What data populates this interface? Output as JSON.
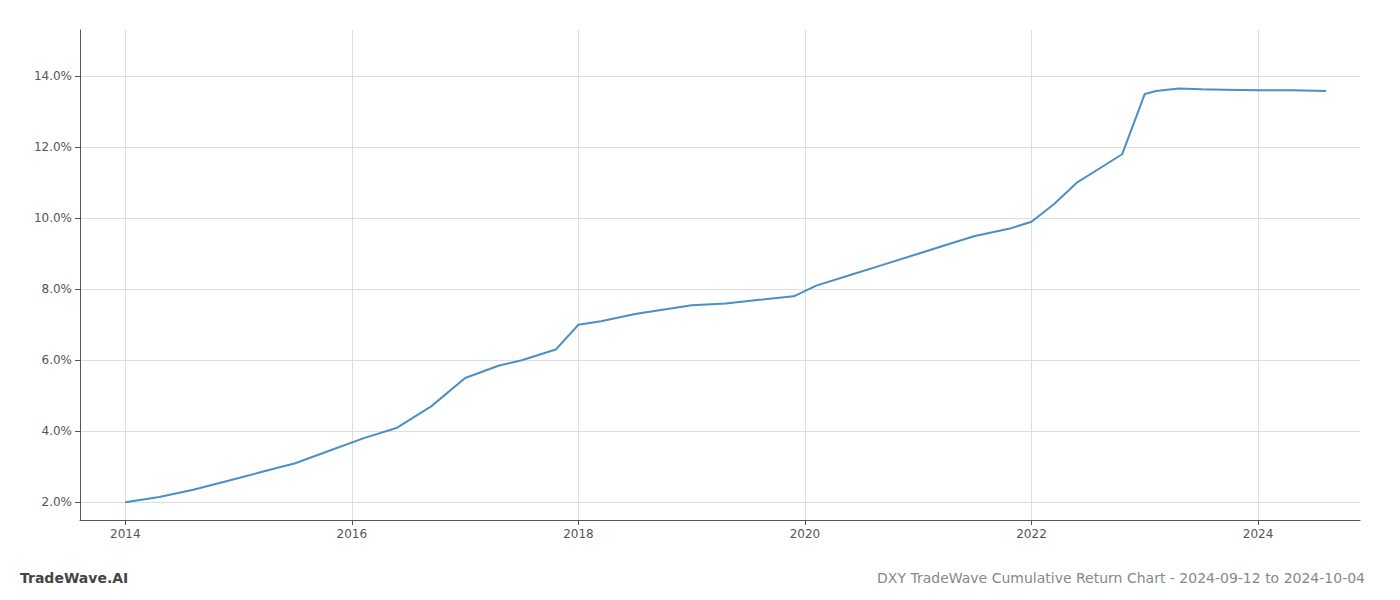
{
  "chart_data": {
    "type": "line",
    "title": "DXY TradeWave Cumulative Return Chart - 2024-09-12 to 2024-10-04",
    "annotations": [
      "TradeWave.AI"
    ],
    "color": "#4a90c4",
    "grid": true,
    "x": [
      2014.0,
      2014.3,
      2014.6,
      2014.9,
      2015.2,
      2015.5,
      2015.8,
      2016.1,
      2016.4,
      2016.7,
      2017.0,
      2017.3,
      2017.5,
      2017.8,
      2018.0,
      2018.2,
      2018.5,
      2018.8,
      2019.0,
      2019.3,
      2019.6,
      2019.9,
      2020.1,
      2020.4,
      2020.7,
      2021.0,
      2021.3,
      2021.5,
      2021.8,
      2022.0,
      2022.2,
      2022.4,
      2022.6,
      2022.8,
      2023.0,
      2023.1,
      2023.2,
      2023.3,
      2023.5,
      2023.7,
      2024.0,
      2024.3,
      2024.6
    ],
    "values": [
      2.0,
      2.15,
      2.35,
      2.6,
      2.85,
      3.1,
      3.45,
      3.8,
      4.1,
      4.7,
      5.5,
      5.85,
      6.0,
      6.3,
      7.0,
      7.1,
      7.3,
      7.45,
      7.55,
      7.6,
      7.7,
      7.8,
      8.1,
      8.4,
      8.7,
      9.0,
      9.3,
      9.5,
      9.7,
      9.9,
      10.4,
      11.0,
      11.4,
      11.8,
      13.5,
      13.58,
      13.62,
      13.65,
      13.63,
      13.62,
      13.6,
      13.6,
      13.58
    ],
    "xlim": [
      2013.6,
      2024.9
    ],
    "ylim": [
      1.5,
      15.3
    ],
    "xticks": [
      2014,
      2016,
      2018,
      2020,
      2022,
      2024
    ],
    "yticks": [
      {
        "value": 2.0,
        "label": "2.0%"
      },
      {
        "value": 4.0,
        "label": "4.0%"
      },
      {
        "value": 6.0,
        "label": "6.0%"
      },
      {
        "value": 8.0,
        "label": "8.0%"
      },
      {
        "value": 10.0,
        "label": "10.0%"
      },
      {
        "value": 12.0,
        "label": "12.0%"
      },
      {
        "value": 14.0,
        "label": "14.0%"
      }
    ]
  }
}
